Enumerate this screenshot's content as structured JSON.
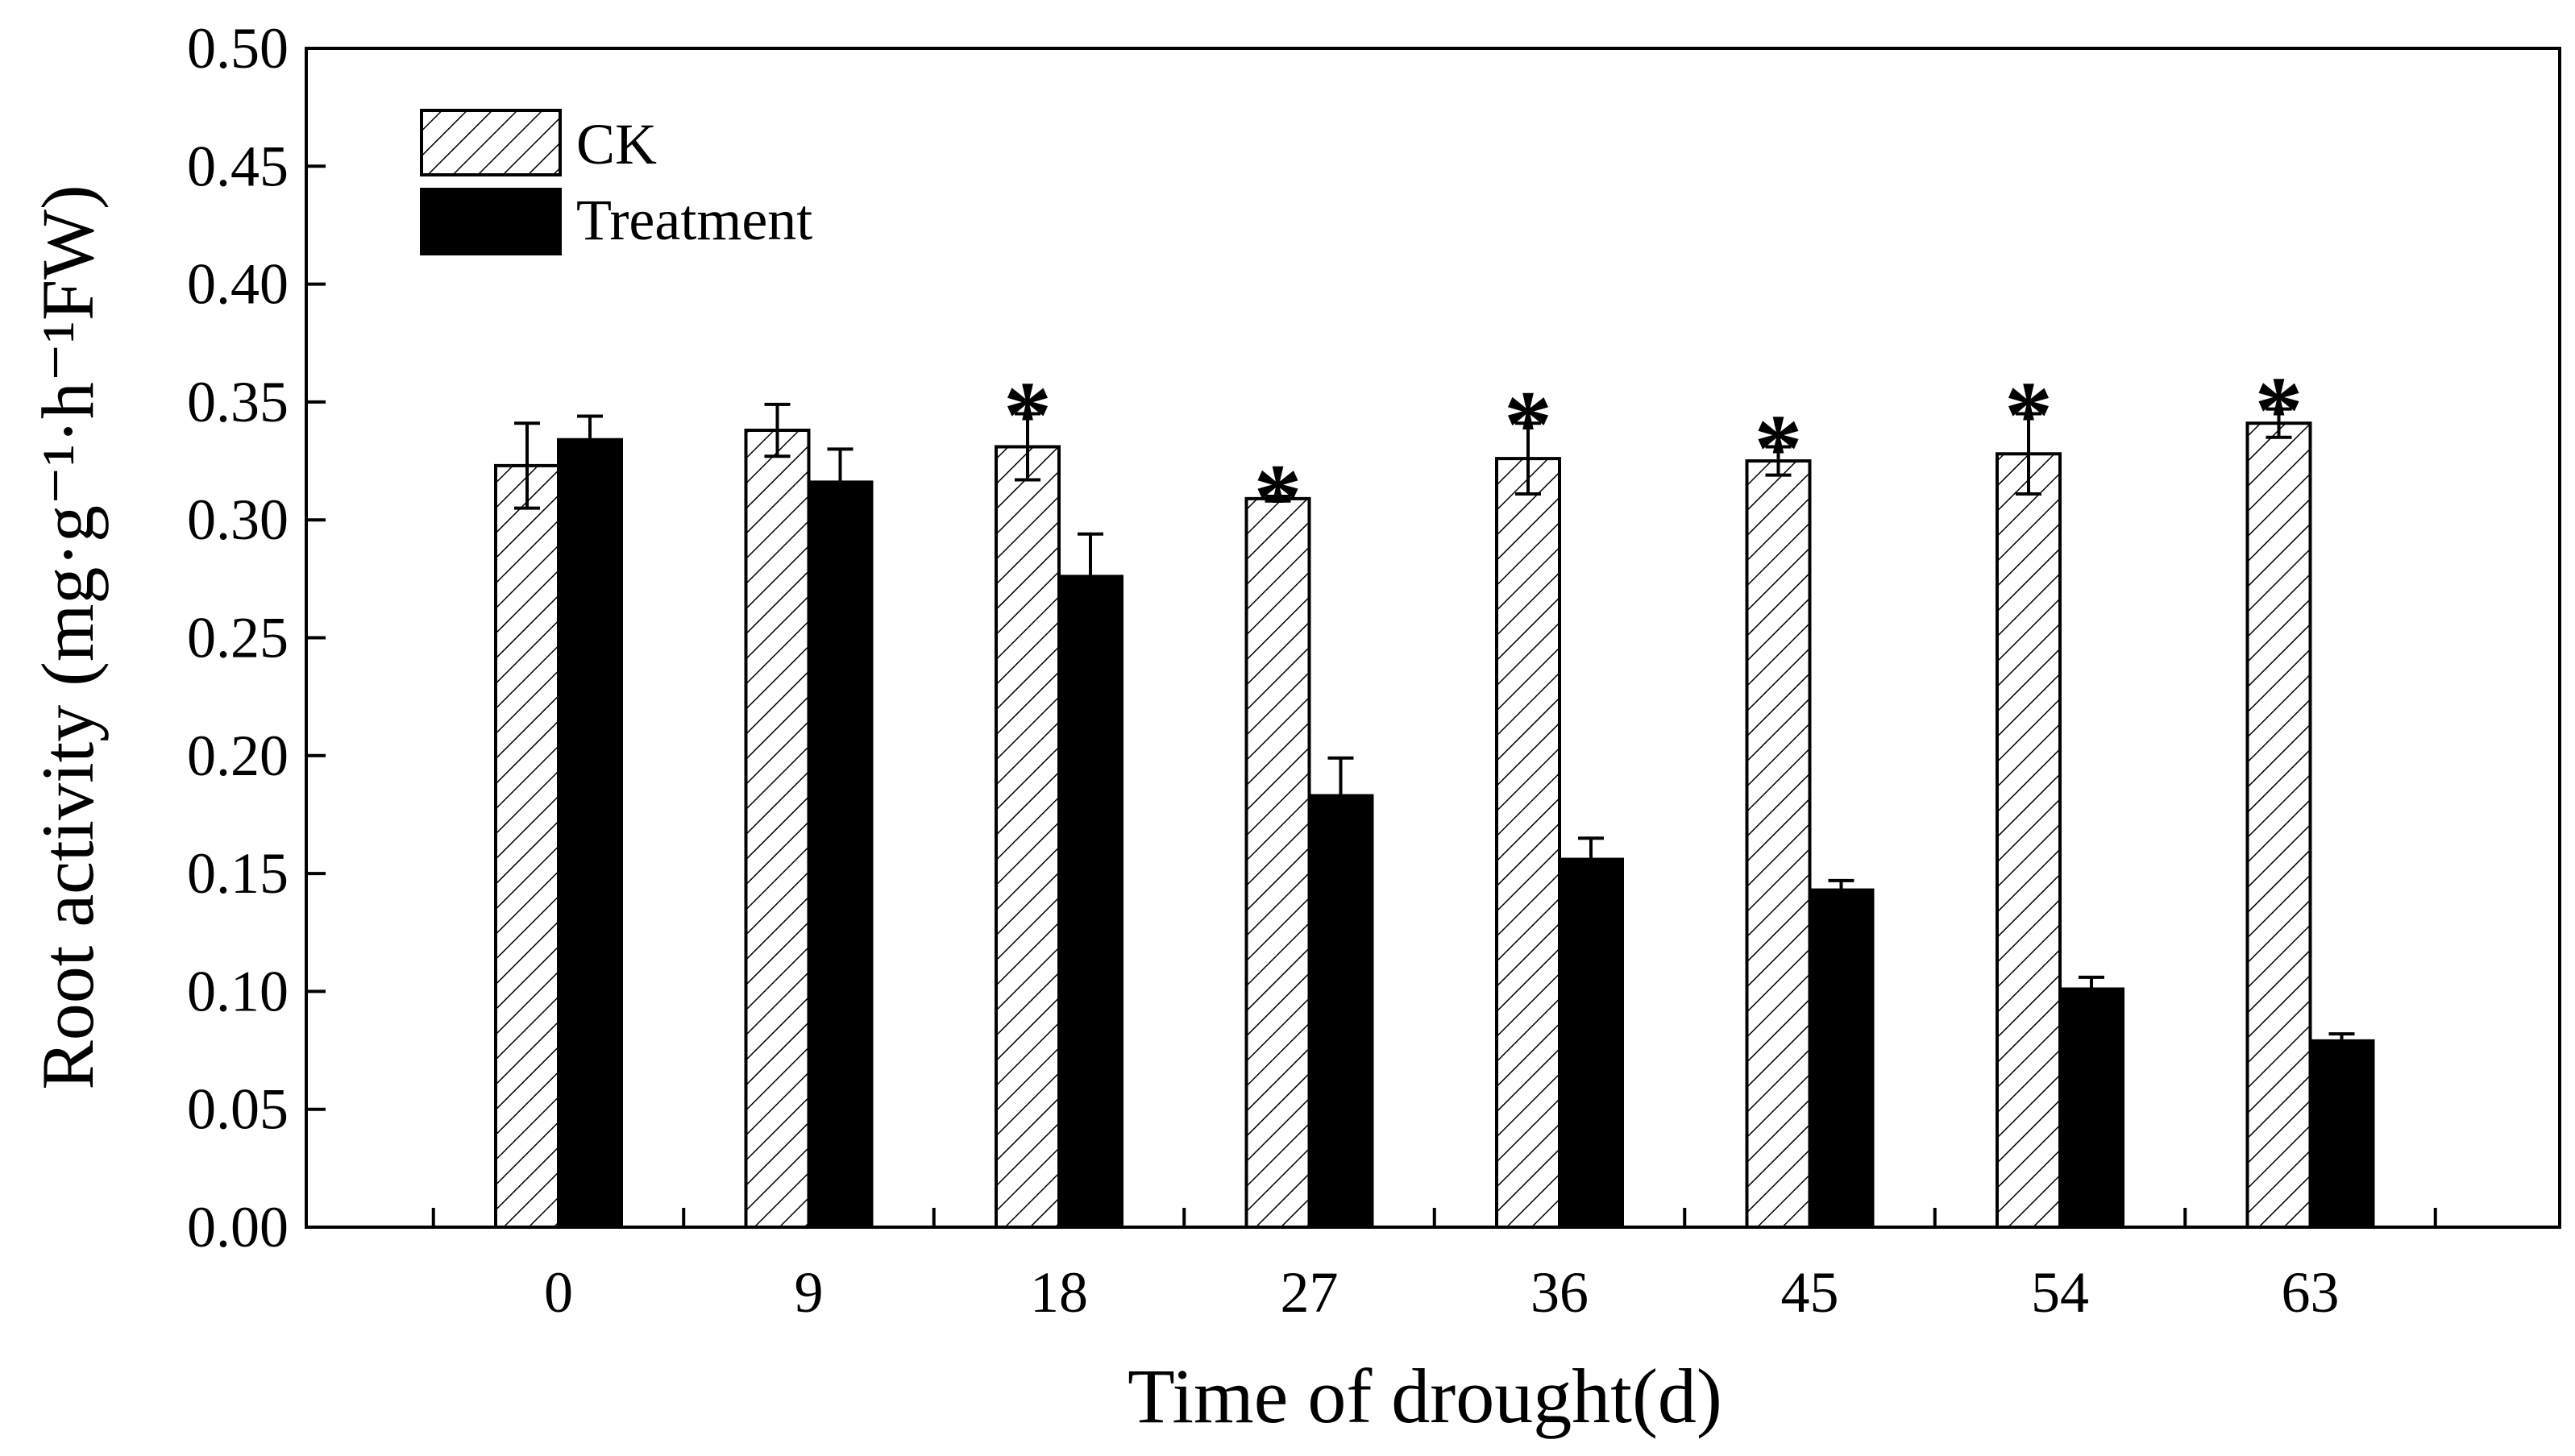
{
  "chart_data": {
    "type": "bar",
    "xlabel": "Time of drought(d)",
    "ylabel": "Root activity (mg·g⁻¹·h⁻¹FW)",
    "ylim": [
      0,
      0.5
    ],
    "yticks": [
      "0.00",
      "0.05",
      "0.10",
      "0.15",
      "0.20",
      "0.25",
      "0.30",
      "0.35",
      "0.40",
      "0.45",
      "0.50"
    ],
    "categories": [
      "0",
      "9",
      "18",
      "27",
      "36",
      "45",
      "54",
      "63"
    ],
    "series": [
      {
        "name": "CK",
        "fill": "hatched",
        "values": [
          0.323,
          0.338,
          0.331,
          0.309,
          0.326,
          0.325,
          0.328,
          0.341
        ],
        "errors": [
          0.018,
          0.011,
          0.014,
          0.001,
          0.015,
          0.006,
          0.017,
          0.006
        ]
      },
      {
        "name": "Treatment",
        "fill": "#000000",
        "values": [
          0.334,
          0.316,
          0.276,
          0.183,
          0.156,
          0.143,
          0.101,
          0.079
        ],
        "errors": [
          0.01,
          0.014,
          0.018,
          0.016,
          0.009,
          0.004,
          0.005,
          0.003
        ]
      }
    ],
    "significance": [
      false,
      false,
      true,
      true,
      true,
      true,
      true,
      true
    ],
    "significance_marker": "*",
    "legend_position": "top-left",
    "grid": false
  }
}
